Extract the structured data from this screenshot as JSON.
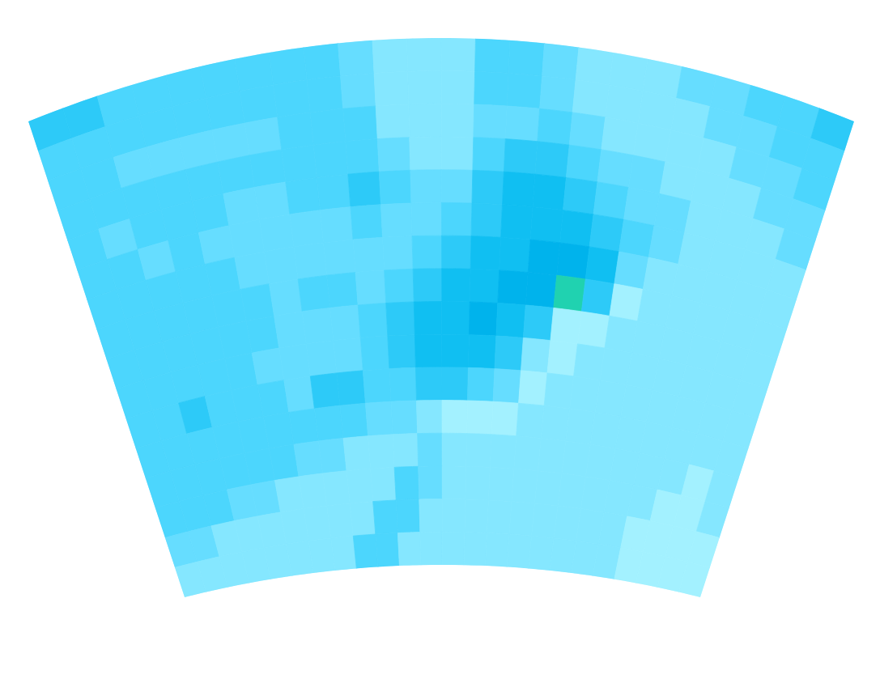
{
  "chart_data": {
    "type": "contour",
    "tick_labels": false,
    "levels": [
      0,
      1,
      2,
      3,
      4,
      5,
      6,
      7,
      8
    ],
    "colors": [
      "#a3f1ff",
      "#85e7ff",
      "#66ddff",
      "#4cd6fd",
      "#2dcaf8",
      "#10bff2",
      "#00b3ec",
      "#20d2b0"
    ],
    "cells": [
      [
        4.2,
        4.0,
        3.6,
        3.4,
        3.3,
        3.2,
        3.3,
        3.4,
        3.5,
        2.6,
        1.2,
        1.4,
        1.8,
        3.2,
        3.4,
        2.6,
        1.6,
        1.8,
        1.7,
        2.4,
        2.8,
        3.4,
        3.8,
        4.2
      ],
      [
        3.6,
        3.4,
        3.2,
        3.3,
        3.5,
        3.6,
        3.3,
        3.2,
        3.4,
        2.8,
        1.3,
        1.1,
        1.6,
        3.0,
        3.3,
        2.5,
        1.4,
        1.6,
        1.5,
        1.8,
        2.2,
        2.9,
        3.3,
        3.6
      ],
      [
        3.3,
        3.1,
        2.4,
        2.3,
        2.5,
        2.4,
        2.6,
        3.3,
        3.4,
        3.0,
        1.6,
        1.0,
        1.4,
        2.2,
        2.8,
        3.0,
        2.6,
        1.6,
        1.4,
        1.3,
        1.5,
        2.0,
        2.6,
        3.0
      ],
      [
        3.2,
        3.3,
        3.4,
        3.4,
        3.3,
        3.2,
        3.3,
        3.4,
        3.5,
        3.2,
        2.4,
        1.2,
        1.6,
        3.3,
        4.2,
        4.0,
        3.2,
        2.6,
        2.0,
        1.5,
        1.4,
        1.6,
        2.0,
        2.6
      ],
      [
        3.2,
        2.6,
        3.3,
        3.4,
        3.0,
        2.5,
        2.4,
        3.2,
        3.4,
        4.1,
        3.2,
        2.2,
        2.8,
        4.4,
        5.0,
        5.2,
        4.6,
        3.4,
        2.6,
        2.0,
        1.6,
        1.5,
        1.7,
        2.2
      ],
      [
        3.3,
        3.2,
        2.8,
        3.2,
        2.4,
        2.2,
        2.5,
        2.3,
        2.4,
        3.0,
        2.8,
        2.4,
        3.6,
        4.8,
        5.5,
        5.6,
        5.4,
        4.2,
        3.0,
        2.2,
        1.7,
        1.5,
        1.6,
        1.9
      ],
      [
        3.3,
        3.4,
        3.3,
        3.2,
        3.0,
        2.6,
        2.4,
        2.5,
        2.8,
        2.7,
        2.6,
        3.2,
        4.6,
        5.6,
        5.8,
        6.0,
        6.2,
        5.0,
        2.8,
        1.6,
        1.3,
        1.3,
        1.4,
        1.6
      ],
      [
        3.2,
        3.3,
        3.4,
        3.3,
        3.2,
        3.0,
        2.8,
        3.1,
        3.0,
        2.8,
        3.0,
        4.4,
        5.4,
        5.8,
        6.0,
        6.4,
        7.2,
        4.6,
        0.8,
        1.2,
        1.4,
        1.3,
        1.3,
        1.5
      ],
      [
        3.2,
        3.3,
        3.3,
        3.2,
        3.2,
        3.0,
        2.4,
        2.3,
        2.5,
        3.0,
        4.0,
        5.0,
        5.6,
        6.0,
        5.8,
        4.8,
        0.8,
        0.6,
        1.0,
        1.3,
        1.3,
        1.3,
        1.4,
        1.4
      ],
      [
        3.3,
        3.2,
        3.3,
        3.3,
        3.1,
        2.6,
        2.3,
        2.4,
        2.6,
        3.2,
        4.6,
        5.2,
        5.6,
        5.0,
        4.2,
        1.0,
        0.8,
        1.2,
        1.4,
        1.3,
        1.2,
        1.2,
        1.3,
        1.3
      ],
      [
        3.4,
        3.3,
        4.2,
        3.3,
        3.2,
        3.0,
        2.6,
        4.3,
        4.1,
        3.2,
        3.6,
        4.6,
        4.8,
        3.8,
        2.0,
        0.8,
        1.2,
        1.3,
        1.2,
        1.2,
        1.2,
        1.1,
        1.2,
        1.2
      ],
      [
        3.4,
        3.3,
        3.4,
        3.3,
        3.2,
        3.3,
        3.2,
        3.3,
        3.0,
        2.6,
        2.2,
        1.6,
        0.8,
        0.7,
        0.6,
        1.0,
        1.4,
        1.3,
        1.2,
        1.1,
        1.1,
        1.1,
        1.1,
        1.2
      ],
      [
        3.3,
        3.3,
        3.2,
        3.2,
        3.1,
        3.2,
        2.8,
        2.2,
        1.8,
        1.4,
        1.2,
        2.4,
        1.2,
        1.4,
        1.6,
        1.4,
        1.3,
        1.2,
        1.2,
        1.1,
        1.0,
        1.0,
        0.8,
        1.1
      ],
      [
        3.2,
        3.2,
        3.1,
        2.8,
        2.0,
        1.6,
        1.4,
        1.5,
        1.6,
        1.2,
        3.0,
        2.6,
        1.4,
        1.6,
        1.8,
        1.6,
        1.4,
        1.3,
        1.2,
        1.1,
        1.0,
        0.7,
        0.6,
        1.0
      ],
      [
        2.6,
        2.2,
        1.8,
        1.4,
        1.3,
        1.2,
        1.4,
        1.3,
        1.2,
        3.4,
        3.6,
        1.6,
        1.3,
        1.5,
        1.6,
        1.4,
        1.3,
        1.2,
        1.2,
        1.0,
        0.8,
        0.6,
        0.5,
        0.9
      ],
      [
        1.3,
        1.2,
        1.1,
        1.0,
        1.1,
        1.2,
        1.3,
        1.2,
        3.0,
        3.2,
        1.4,
        1.3,
        1.2,
        1.4,
        1.5,
        1.4,
        1.3,
        1.2,
        1.1,
        1.0,
        0.8,
        0.6,
        0.5,
        0.8
      ]
    ]
  }
}
